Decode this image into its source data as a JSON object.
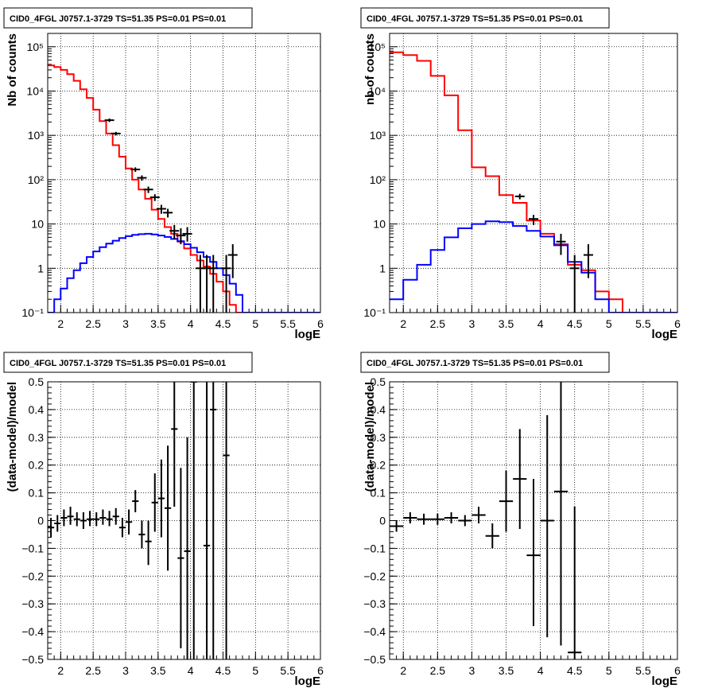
{
  "chart_data": [
    {
      "type": "line",
      "title": "CID0_4FGL J0757.1-3729 TS=51.35 PS=0.01 PS=0.01",
      "xlabel": "logE",
      "ylabel": "Nb of counts",
      "yscale": "log",
      "xlim": [
        1.8,
        6.0
      ],
      "ylim": [
        0.1,
        200000
      ],
      "grid": true,
      "x_ticks": [
        "2",
        "2.5",
        "3",
        "3.5",
        "4",
        "4.5",
        "5",
        "5.5",
        "6"
      ],
      "y_ticks": [
        "10⁻¹",
        "1",
        "10",
        "10²",
        "10³",
        "10⁴",
        "10⁵"
      ],
      "bin_edges": [
        1.8,
        1.9,
        2.0,
        2.1,
        2.2,
        2.3,
        2.4,
        2.5,
        2.6,
        2.7,
        2.8,
        2.9,
        3.0,
        3.1,
        3.2,
        3.3,
        3.4,
        3.5,
        3.6,
        3.7,
        3.8,
        3.9,
        4.0,
        4.1,
        4.2,
        4.3,
        4.4,
        4.5,
        4.6,
        4.7,
        4.8,
        4.9,
        5.0,
        5.1,
        5.2,
        5.3,
        5.4,
        5.5,
        5.6,
        5.7,
        5.8,
        5.9,
        6.0
      ],
      "series": [
        {
          "color": "#ff0000",
          "values": [
            38000,
            35000,
            30000,
            24000,
            17000,
            11000,
            7000,
            3800,
            2100,
            1100,
            600,
            330,
            180,
            100,
            60,
            37,
            21,
            13,
            8.5,
            6,
            4,
            2.8,
            2.0,
            1.5,
            1.1,
            0.75,
            0.5,
            0.3,
            0.15,
            0.1,
            0.1,
            0.1,
            0.1,
            0.1,
            0.1,
            0.1,
            0.1,
            0.1,
            0.1,
            0.1,
            0.1,
            0.1
          ]
        },
        {
          "color": "#0000ff",
          "values": [
            0.1,
            0.2,
            0.35,
            0.6,
            0.9,
            1.3,
            1.8,
            2.4,
            3.0,
            3.6,
            4.2,
            4.8,
            5.3,
            5.7,
            5.9,
            6.0,
            5.8,
            5.5,
            5.1,
            4.6,
            4.1,
            3.5,
            2.9,
            2.3,
            1.8,
            1.4,
            1.0,
            0.7,
            0.45,
            0.25,
            0.1,
            0.1,
            0.1,
            0.1,
            0.1,
            0.1,
            0.1,
            0.1,
            0.1,
            0.1,
            0.1,
            0.1
          ]
        }
      ],
      "data_points": [
        {
          "x": 2.75,
          "y": 2200,
          "lo": 2000,
          "hi": 2400
        },
        {
          "x": 2.85,
          "y": 1100,
          "lo": 1000,
          "hi": 1200
        },
        {
          "x": 3.15,
          "y": 170,
          "lo": 150,
          "hi": 190
        },
        {
          "x": 3.25,
          "y": 110,
          "lo": 95,
          "hi": 125
        },
        {
          "x": 3.35,
          "y": 60,
          "lo": 50,
          "hi": 70
        },
        {
          "x": 3.45,
          "y": 40,
          "lo": 33,
          "hi": 47
        },
        {
          "x": 3.55,
          "y": 22,
          "lo": 17,
          "hi": 27
        },
        {
          "x": 3.65,
          "y": 18,
          "lo": 14,
          "hi": 22
        },
        {
          "x": 3.75,
          "y": 7,
          "lo": 4.5,
          "hi": 9.5
        },
        {
          "x": 3.85,
          "y": 5.5,
          "lo": 3.5,
          "hi": 8
        },
        {
          "x": 3.95,
          "y": 6,
          "lo": 4,
          "hi": 8.5
        },
        {
          "x": 4.15,
          "y": 1,
          "lo": 0.1,
          "hi": 2
        },
        {
          "x": 4.25,
          "y": 1,
          "lo": 0.1,
          "hi": 2
        },
        {
          "x": 4.35,
          "y": 1,
          "lo": 0.1,
          "hi": 2
        },
        {
          "x": 4.55,
          "y": 1,
          "lo": 0.1,
          "hi": 2
        },
        {
          "x": 4.65,
          "y": 2,
          "lo": 0.6,
          "hi": 3.5
        }
      ]
    },
    {
      "type": "line",
      "title": "CID0_4FGL J0757.1-3729 TS=51.35 PS=0.01 PS=0.01",
      "xlabel": "logE",
      "ylabel": "nb of counts",
      "yscale": "log",
      "xlim": [
        1.8,
        6.0
      ],
      "ylim": [
        0.1,
        200000
      ],
      "grid": true,
      "x_ticks": [
        "2",
        "2.5",
        "3",
        "3.5",
        "4",
        "4.5",
        "5",
        "5.5",
        "6"
      ],
      "y_ticks": [
        "10⁻¹",
        "1",
        "10",
        "10²",
        "10³",
        "10⁴",
        "10⁵"
      ],
      "bin_edges": [
        1.8,
        2.0,
        2.2,
        2.4,
        2.6,
        2.8,
        3.0,
        3.2,
        3.4,
        3.6,
        3.8,
        4.0,
        4.2,
        4.4,
        4.6,
        4.8,
        5.0,
        5.2,
        5.4,
        5.6,
        5.8,
        6.0
      ],
      "series": [
        {
          "color": "#ff0000",
          "values": [
            75000,
            65000,
            48000,
            22000,
            8000,
            1300,
            190,
            120,
            45,
            30,
            12,
            6,
            3.5,
            1.2,
            0.9,
            0.3,
            0.2,
            0.1,
            0.1,
            0.1,
            0.1
          ]
        },
        {
          "color": "#0000ff",
          "values": [
            0.2,
            0.55,
            1.2,
            2.6,
            5,
            8,
            10,
            11.5,
            11,
            9,
            7,
            5.2,
            3.3,
            1.4,
            0.8,
            0.2,
            0.1,
            0.1,
            0.1,
            0.1,
            0.1
          ]
        }
      ],
      "data_points": [
        {
          "x": 3.7,
          "y": 42,
          "lo": 36,
          "hi": 48
        },
        {
          "x": 3.9,
          "y": 13,
          "lo": 9.5,
          "hi": 16
        },
        {
          "x": 4.3,
          "y": 4,
          "lo": 2,
          "hi": 6
        },
        {
          "x": 4.5,
          "y": 1,
          "lo": 0.1,
          "hi": 2
        },
        {
          "x": 4.7,
          "y": 2,
          "lo": 0.6,
          "hi": 3.5
        }
      ]
    },
    {
      "type": "scatter",
      "title": "CID0_4FGL J0757.1-3729 TS=51.35 PS=0.01 PS=0.01",
      "xlabel": "logE",
      "ylabel": "(data-model)/model",
      "xlim": [
        1.8,
        6.0
      ],
      "ylim": [
        -0.5,
        0.5
      ],
      "grid": true,
      "x_ticks": [
        "2",
        "2.5",
        "3",
        "3.5",
        "4",
        "4.5",
        "5",
        "5.5",
        "6"
      ],
      "y_ticks": [
        "−0.5",
        "−0.4",
        "−0.3",
        "−0.2",
        "−0.1",
        "0",
        "0.1",
        "0.2",
        "0.3",
        "0.4",
        "0.5"
      ],
      "bin_halfwidth": 0.05,
      "points": [
        {
          "x": 1.85,
          "y": -0.025,
          "lo": -0.06,
          "hi": 0.01
        },
        {
          "x": 1.95,
          "y": -0.01,
          "lo": -0.04,
          "hi": 0.02
        },
        {
          "x": 2.05,
          "y": 0.01,
          "lo": -0.02,
          "hi": 0.04
        },
        {
          "x": 2.15,
          "y": 0.015,
          "lo": -0.015,
          "hi": 0.05
        },
        {
          "x": 2.25,
          "y": 0.005,
          "lo": -0.02,
          "hi": 0.03
        },
        {
          "x": 2.35,
          "y": 0.0,
          "lo": -0.03,
          "hi": 0.03
        },
        {
          "x": 2.45,
          "y": 0.005,
          "lo": -0.02,
          "hi": 0.035
        },
        {
          "x": 2.55,
          "y": 0.005,
          "lo": -0.02,
          "hi": 0.03
        },
        {
          "x": 2.65,
          "y": 0.01,
          "lo": -0.015,
          "hi": 0.04
        },
        {
          "x": 2.75,
          "y": 0.005,
          "lo": -0.02,
          "hi": 0.035
        },
        {
          "x": 2.85,
          "y": 0.015,
          "lo": -0.015,
          "hi": 0.045
        },
        {
          "x": 2.95,
          "y": -0.025,
          "lo": -0.06,
          "hi": 0.01
        },
        {
          "x": 3.05,
          "y": -0.005,
          "lo": -0.05,
          "hi": 0.04
        },
        {
          "x": 3.15,
          "y": 0.07,
          "lo": 0.03,
          "hi": 0.11
        },
        {
          "x": 3.25,
          "y": -0.05,
          "lo": -0.1,
          "hi": 0.0
        },
        {
          "x": 3.35,
          "y": -0.075,
          "lo": -0.16,
          "hi": 0.0
        },
        {
          "x": 3.45,
          "y": 0.065,
          "lo": -0.04,
          "hi": 0.17
        },
        {
          "x": 3.55,
          "y": 0.08,
          "lo": -0.06,
          "hi": 0.22
        },
        {
          "x": 3.65,
          "y": 0.045,
          "lo": -0.18,
          "hi": 0.27
        },
        {
          "x": 3.75,
          "y": 0.33,
          "lo": 0.05,
          "hi": 0.6
        },
        {
          "x": 3.85,
          "y": -0.135,
          "lo": -0.46,
          "hi": 0.19
        },
        {
          "x": 3.95,
          "y": -0.11,
          "lo": -0.5,
          "hi": 0.3
        },
        {
          "x": 4.05,
          "y": 0.5,
          "lo": -0.5,
          "hi": 0.5
        },
        {
          "x": 4.25,
          "y": -0.09,
          "lo": -0.5,
          "hi": 0.5
        },
        {
          "x": 4.35,
          "y": 0.4,
          "lo": -0.5,
          "hi": 0.5
        },
        {
          "x": 4.55,
          "y": 0.235,
          "lo": -0.5,
          "hi": 0.5
        }
      ]
    },
    {
      "type": "scatter",
      "title": "CID0_4FGL J0757.1-3729 TS=51.35 PS=0.01 PS=0.01",
      "xlabel": "logE",
      "ylabel": "(data-model)/model",
      "xlim": [
        1.8,
        6.0
      ],
      "ylim": [
        -0.5,
        0.5
      ],
      "grid": true,
      "x_ticks": [
        "2",
        "2.5",
        "3",
        "3.5",
        "4",
        "4.5",
        "5",
        "5.5",
        "6"
      ],
      "y_ticks": [
        "−0.5",
        "−0.4",
        "−0.3",
        "−0.2",
        "−0.1",
        "0",
        "0.1",
        "0.2",
        "0.3",
        "0.4",
        "0.5"
      ],
      "bin_halfwidth": 0.1,
      "points": [
        {
          "x": 1.9,
          "y": -0.02,
          "lo": -0.04,
          "hi": 0.0
        },
        {
          "x": 2.1,
          "y": 0.01,
          "lo": -0.01,
          "hi": 0.03
        },
        {
          "x": 2.3,
          "y": 0.005,
          "lo": -0.015,
          "hi": 0.025
        },
        {
          "x": 2.5,
          "y": 0.005,
          "lo": -0.015,
          "hi": 0.025
        },
        {
          "x": 2.7,
          "y": 0.01,
          "lo": -0.01,
          "hi": 0.03
        },
        {
          "x": 2.9,
          "y": 0.0,
          "lo": -0.02,
          "hi": 0.02
        },
        {
          "x": 3.1,
          "y": 0.02,
          "lo": -0.01,
          "hi": 0.05
        },
        {
          "x": 3.3,
          "y": -0.055,
          "lo": -0.1,
          "hi": -0.01
        },
        {
          "x": 3.5,
          "y": 0.07,
          "lo": -0.04,
          "hi": 0.18
        },
        {
          "x": 3.7,
          "y": 0.15,
          "lo": -0.03,
          "hi": 0.33
        },
        {
          "x": 3.9,
          "y": -0.125,
          "lo": -0.38,
          "hi": 0.15
        },
        {
          "x": 4.1,
          "y": 0.0,
          "lo": -0.42,
          "hi": 0.38
        },
        {
          "x": 4.3,
          "y": 0.105,
          "lo": -0.45,
          "hi": 0.5
        },
        {
          "x": 4.5,
          "y": -0.475,
          "lo": -0.5,
          "hi": 0.05
        }
      ]
    }
  ]
}
